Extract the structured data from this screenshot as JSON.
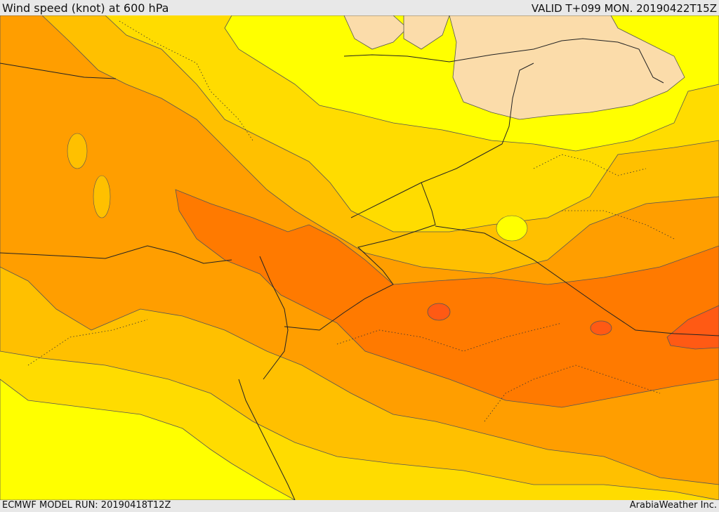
{
  "header": {
    "title": "Wind speed (knot) at 600 hPa",
    "valid_time": "VALID T+099 MON. 20190422T15Z"
  },
  "footer": {
    "model_run": "ECMWF MODEL RUN: 20190418T12Z",
    "credit": "ArabiaWeather Inc."
  },
  "map": {
    "colors": {
      "light_peach": "#fbdcaa",
      "bright_yellow": "#ffff00",
      "gold": "#ffdc00",
      "amber": "#ffc000",
      "orange": "#ff9e00",
      "dark_orange": "#ff7a00",
      "red_orange": "#ff5a14"
    }
  }
}
